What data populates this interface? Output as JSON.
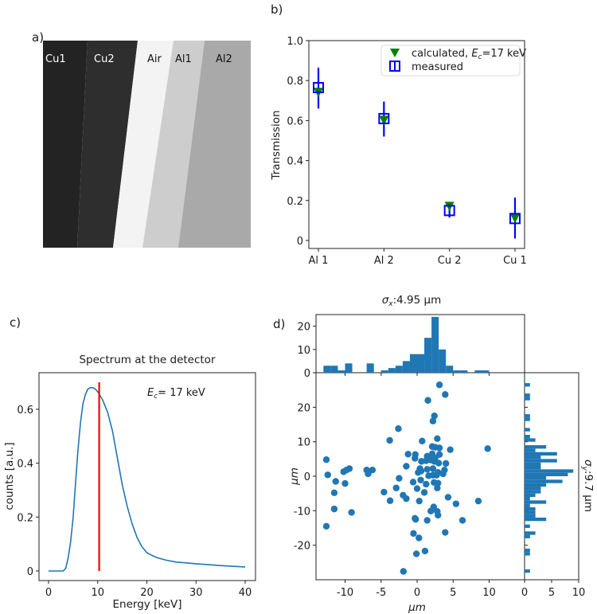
{
  "panel_labels": [
    "a)",
    "b)",
    "c)",
    "d)"
  ],
  "chart_data": [
    {
      "panel": "a",
      "type": "image",
      "regions": [
        {
          "label": "Cu1",
          "color": "#232323",
          "text_color": "#ffffff"
        },
        {
          "label": "Cu2",
          "color": "#2e2e2e",
          "text_color": "#ffffff"
        },
        {
          "label": "Air",
          "color": "#f3f3f3",
          "text_color": "#111111"
        },
        {
          "label": "Al1",
          "color": "#cdcdcd",
          "text_color": "#111111"
        },
        {
          "label": "Al2",
          "color": "#a9a9a9",
          "text_color": "#111111"
        }
      ]
    },
    {
      "panel": "b",
      "type": "scatter",
      "categories": [
        "Al 1",
        "Al 2",
        "Cu 2",
        "Cu 1"
      ],
      "ylabel": "Transmission",
      "ylim": [
        0,
        1.0
      ],
      "yticks": [
        {
          "v": 0,
          "t": "0"
        },
        {
          "v": 0.2,
          "t": "0.2"
        },
        {
          "v": 0.4,
          "t": "0.4"
        },
        {
          "v": 0.6,
          "t": "0.6"
        },
        {
          "v": 0.8,
          "t": "0.8"
        },
        {
          "v": 1.0,
          "t": "1.0"
        }
      ],
      "legend": {
        "placement": "top-right",
        "calc_prefix": "calculated, ",
        "calc_E": "E",
        "calc_sub": "c",
        "calc_suffix": "=17 keV",
        "measured": "measured"
      },
      "series": [
        {
          "name": "calculated",
          "color": "#008000",
          "marker": "triangle-down",
          "values": [
            0.74,
            0.6,
            0.17,
            0.11
          ]
        },
        {
          "name": "measured",
          "color": "#0000ff",
          "marker": "open-square",
          "values": [
            0.765,
            0.61,
            0.15,
            0.11
          ],
          "err_low": [
            0.66,
            0.52,
            0.115,
            0.01
          ],
          "err_high": [
            0.865,
            0.695,
            0.185,
            0.215
          ]
        }
      ]
    },
    {
      "panel": "c",
      "type": "line",
      "title": "Spectrum at the detector",
      "xlabel": "Energy [keV]",
      "ylabel": "counts [a.u.]",
      "xlim": [
        -2,
        42
      ],
      "ylim": [
        -0.035,
        0.736
      ],
      "xticks": [
        0,
        10,
        20,
        30,
        40
      ],
      "yticks": [
        {
          "v": 0,
          "t": "0"
        },
        {
          "v": 0.2,
          "t": "0.2"
        },
        {
          "v": 0.4,
          "t": "0.4"
        },
        {
          "v": 0.6,
          "t": "0.6"
        }
      ],
      "annotation": {
        "E": "E",
        "sub": "c",
        "text": "= 17 keV"
      },
      "line_color": "#1f77b4",
      "x": [
        0,
        3,
        3.5,
        4,
        4.5,
        5,
        5.5,
        6,
        6.5,
        7,
        7.5,
        8,
        8.5,
        9,
        9.5,
        10,
        11,
        12,
        13,
        14,
        15,
        16,
        17,
        18,
        19,
        20,
        21,
        22,
        24,
        26,
        28,
        30,
        35,
        40
      ],
      "y": [
        0,
        0,
        0.01,
        0.05,
        0.11,
        0.2,
        0.33,
        0.45,
        0.55,
        0.62,
        0.655,
        0.675,
        0.68,
        0.68,
        0.675,
        0.665,
        0.635,
        0.59,
        0.52,
        0.42,
        0.32,
        0.24,
        0.175,
        0.125,
        0.09,
        0.068,
        0.058,
        0.05,
        0.04,
        0.033,
        0.03,
        0.027,
        0.02,
        0.015
      ],
      "vline": {
        "x": 10.3,
        "y0": 0,
        "y1": 0.7,
        "color": "#ff0000"
      }
    },
    {
      "panel": "d",
      "type": "scatter",
      "title_sigma": "σ",
      "title_sub": "x",
      "title_value": ":4.95 μm",
      "side_sigma": "σ",
      "side_sub": "y",
      "side_value": ":9.7 μm",
      "xlabel": "μm",
      "ylabel": "μm",
      "xlim": [
        -13.9,
        14.9
      ],
      "ylim": [
        -30,
        30
      ],
      "xticks": [
        -10,
        -5,
        0,
        5,
        10
      ],
      "yticks": [
        -20,
        -10,
        0,
        10,
        20
      ],
      "color": "#1f77b4",
      "points": [
        [
          3.1,
          26.5
        ],
        [
          3.9,
          23.7
        ],
        [
          1.5,
          22
        ],
        [
          2.4,
          17.5
        ],
        [
          2.2,
          16
        ],
        [
          -2.6,
          13.8
        ],
        [
          -3.8,
          10.4
        ],
        [
          0.7,
          10.2
        ],
        [
          2.8,
          10.9
        ],
        [
          9.8,
          8
        ],
        [
          2.1,
          8.6
        ],
        [
          2.5,
          8.4
        ],
        [
          3.1,
          8.2
        ],
        [
          4.6,
          7.7
        ],
        [
          -12.6,
          4.8
        ],
        [
          -1.25,
          6.4
        ],
        [
          -0.25,
          6.3
        ],
        [
          -0.3,
          5.2
        ],
        [
          1.4,
          5.8
        ],
        [
          2.1,
          6.5
        ],
        [
          3.1,
          6.3
        ],
        [
          2.5,
          5.3
        ],
        [
          0.6,
          4.3
        ],
        [
          1.25,
          4.5
        ],
        [
          1.9,
          4.7
        ],
        [
          2.4,
          4.3
        ],
        [
          3.0,
          3.8
        ],
        [
          4.0,
          3.7
        ],
        [
          -1.5,
          2.9
        ],
        [
          -9.4,
          2.2
        ],
        [
          -9.8,
          1.8
        ],
        [
          -10.2,
          1.3
        ],
        [
          -7.0,
          1.8
        ],
        [
          -6.2,
          1.8
        ],
        [
          -6.8,
          0.7
        ],
        [
          -12.4,
          0.4
        ],
        [
          0.4,
          2.2
        ],
        [
          0.15,
          1.1
        ],
        [
          0.55,
          1.5
        ],
        [
          1.4,
          2.0
        ],
        [
          2.2,
          2.2
        ],
        [
          2.9,
          1.1
        ],
        [
          3.8,
          1.8
        ],
        [
          3.6,
          0.7
        ],
        [
          1.6,
          0.15
        ],
        [
          2.2,
          0.3
        ],
        [
          2.7,
          0.3
        ],
        [
          -11.3,
          -1.5
        ],
        [
          -10.0,
          -2.1
        ],
        [
          -2.5,
          -0.6
        ],
        [
          -0.55,
          -1.7
        ],
        [
          0.5,
          -1.1
        ],
        [
          1.25,
          -2.3
        ],
        [
          2.35,
          -1.8
        ],
        [
          2.9,
          -2.0
        ],
        [
          0,
          -3.6
        ],
        [
          2.8,
          -3.4
        ],
        [
          -2.9,
          -3.4
        ],
        [
          -4.6,
          -4.6
        ],
        [
          1.0,
          -4.7
        ],
        [
          -11.5,
          -4.8
        ],
        [
          -1.95,
          -5.5
        ],
        [
          -1.5,
          -6.5
        ],
        [
          -3.75,
          -7.1
        ],
        [
          0.3,
          -7.2
        ],
        [
          4.3,
          -6.1
        ],
        [
          5.4,
          -8.0
        ],
        [
          8.5,
          -7.2
        ],
        [
          -11.5,
          -9.5
        ],
        [
          -9.1,
          -10.5
        ],
        [
          2.3,
          -8.9
        ],
        [
          1.9,
          -10.1
        ],
        [
          2.8,
          -10.2
        ],
        [
          2.9,
          -11.3
        ],
        [
          -0.3,
          -12.2
        ],
        [
          -0.2,
          -12.5
        ],
        [
          1.4,
          -12.8
        ],
        [
          6.3,
          -12.8
        ],
        [
          -12.6,
          -14.5
        ],
        [
          -0.5,
          -16.6
        ],
        [
          3.9,
          -16.3
        ],
        [
          0.25,
          -17.9
        ],
        [
          1.1,
          -21.7
        ],
        [
          -0.1,
          -22.5
        ],
        [
          -1.9,
          -27.6
        ]
      ],
      "hist_x": {
        "yticks": [
          0,
          10,
          20
        ],
        "ylim": [
          0,
          25
        ],
        "bin_width": 1,
        "bins": [
          [
            -13,
            3
          ],
          [
            -12,
            3
          ],
          [
            -11,
            1
          ],
          [
            -10,
            4
          ],
          [
            -7,
            4
          ],
          [
            -5,
            1
          ],
          [
            -4,
            2
          ],
          [
            -3,
            3
          ],
          [
            -2,
            5
          ],
          [
            -1,
            8
          ],
          [
            0,
            8
          ],
          [
            1,
            15
          ],
          [
            2,
            24
          ],
          [
            3,
            10
          ],
          [
            4,
            3
          ],
          [
            5,
            1
          ],
          [
            6,
            1
          ],
          [
            8,
            1
          ],
          [
            9,
            1
          ]
        ]
      },
      "hist_y": {
        "xticks": [
          0,
          5,
          10
        ],
        "xlim": [
          0,
          10
        ],
        "bin_width": 1,
        "bins": [
          [
            26,
            1
          ],
          [
            23,
            1
          ],
          [
            22,
            1
          ],
          [
            17,
            1
          ],
          [
            16,
            1
          ],
          [
            13,
            1
          ],
          [
            11,
            1
          ],
          [
            10,
            2
          ],
          [
            8,
            4
          ],
          [
            7,
            2
          ],
          [
            6,
            6
          ],
          [
            5,
            3
          ],
          [
            4,
            6
          ],
          [
            3,
            3
          ],
          [
            2,
            3
          ],
          [
            1,
            9
          ],
          [
            0,
            8
          ],
          [
            -1,
            4
          ],
          [
            -2,
            7
          ],
          [
            -3,
            4
          ],
          [
            -4,
            3
          ],
          [
            -5,
            3
          ],
          [
            -6,
            2
          ],
          [
            -7,
            1
          ],
          [
            -8,
            4
          ],
          [
            -9,
            1
          ],
          [
            -10,
            2
          ],
          [
            -11,
            2
          ],
          [
            -12,
            2
          ],
          [
            -13,
            4
          ],
          [
            -15,
            1
          ],
          [
            -17,
            2
          ],
          [
            -18,
            1
          ],
          [
            -22,
            1
          ],
          [
            -23,
            1
          ],
          [
            -28,
            1
          ]
        ]
      }
    }
  ]
}
